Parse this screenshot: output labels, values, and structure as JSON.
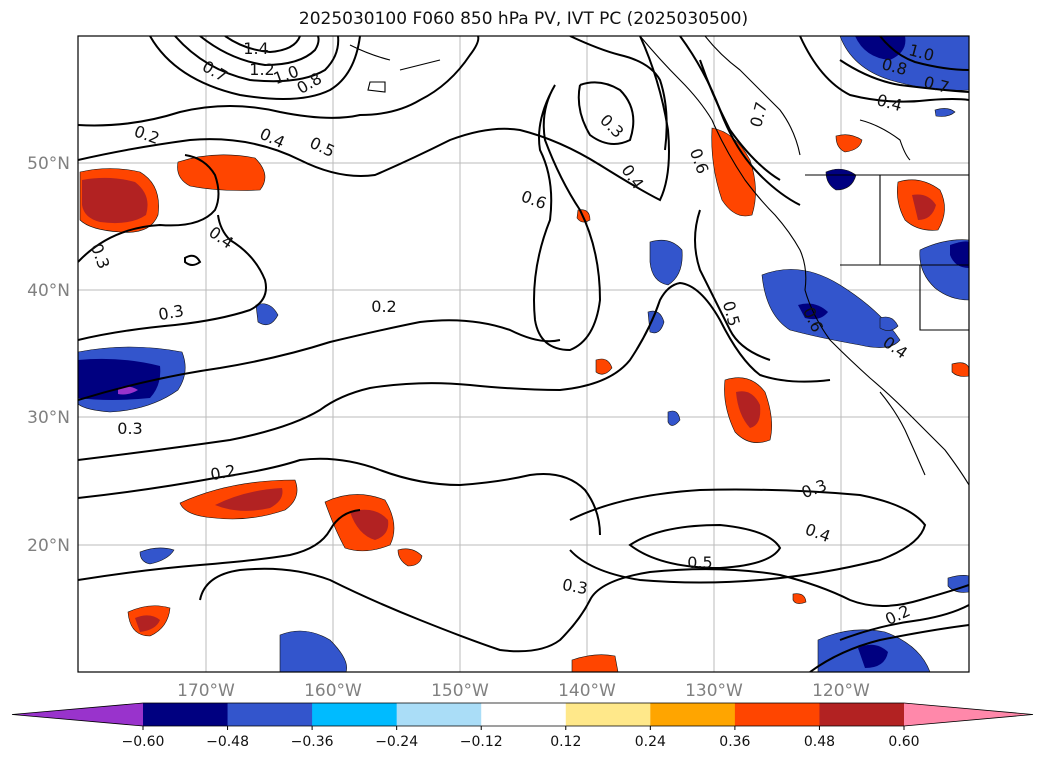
{
  "title": "2025030100 F060 850 hPa PV, IVT PC (2025030500)",
  "lat_labels": [
    "50°N",
    "40°N",
    "30°N",
    "20°N"
  ],
  "lon_labels": [
    "170°W",
    "160°W",
    "150°W",
    "140°W",
    "130°W",
    "120°W"
  ],
  "colorbar": {
    "ticks": [
      "−0.60",
      "−0.48",
      "−0.36",
      "−0.24",
      "−0.12",
      "0.12",
      "0.24",
      "0.36",
      "0.48",
      "0.60"
    ],
    "colors": [
      "#9933cc",
      "#000080",
      "#3355cc",
      "#00bbff",
      "#aaddf7",
      "#ffffff",
      "#ffe88a",
      "#ffa500",
      "#ff4500",
      "#b22222",
      "#ff88aa"
    ]
  },
  "contour_labels": [
    "1.4",
    "1.2",
    "1.0",
    "0.8",
    "0.7",
    "0.2",
    "0.4",
    "0.5",
    "0.3",
    "0.4",
    "0.6",
    "0.6",
    "0.7",
    "0.4",
    "0.3",
    "0.2",
    "0.3",
    "0.5",
    "0.6",
    "0.4",
    "0.3",
    "0.2",
    "0.3",
    "0.4",
    "0.5",
    "0.3",
    "0.2",
    "1.0",
    "0.8",
    "0.7",
    "0.4"
  ]
}
